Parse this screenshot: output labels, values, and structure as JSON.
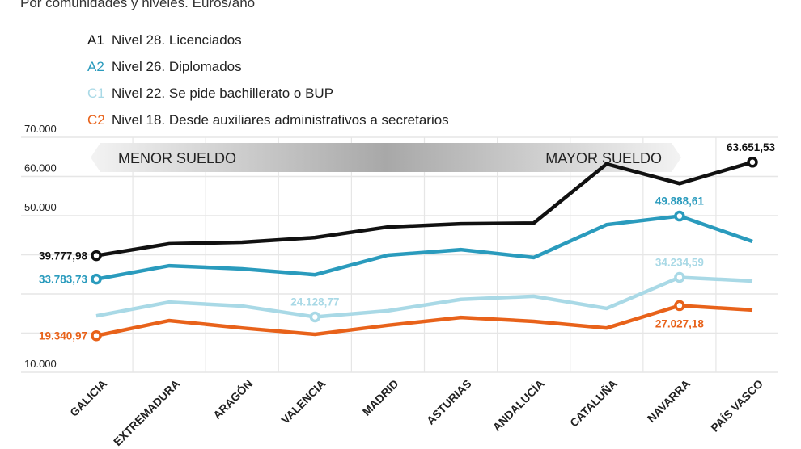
{
  "subtitle": "Por comunidades y niveles. Euros/año",
  "legend": [
    {
      "code": "A1",
      "label": "Nivel 28. Licenciados",
      "color": "#111111"
    },
    {
      "code": "A2",
      "label": "Nivel 26. Diplomados",
      "color": "#2a9bbd"
    },
    {
      "code": "C1",
      "label": "Nivel 22. Se pide bachillerato o BUP",
      "color": "#a9d9e6"
    },
    {
      "code": "C2",
      "label": "Nivel 18. Desde auxiliares administrativos a secretarios",
      "color": "#e8621a"
    }
  ],
  "band": {
    "left_label": "MENOR SUELDO",
    "right_label": "MAYOR SUELDO"
  },
  "chart_data": {
    "type": "line",
    "title": "Por comunidades y niveles. Euros/año",
    "xlabel": "",
    "ylabel": "",
    "ylim": [
      10000,
      70000
    ],
    "yticks": [
      10000,
      20000,
      30000,
      40000,
      50000,
      60000,
      70000
    ],
    "ytick_labels": [
      "10.000",
      "",
      "",
      "",
      "50.000",
      "60.000",
      "70.000"
    ],
    "grid": true,
    "legend_position": "top-left",
    "categories": [
      "GALICIA",
      "EXTREMADURA",
      "ARAGÓN",
      "VALENCIA",
      "MADRID",
      "ASTURIAS",
      "ANDALUCÍA",
      "CATALUÑA",
      "NAVARRA",
      "PAÍS VASCO"
    ],
    "series": [
      {
        "name": "A1",
        "color": "#111111",
        "values": [
          39777.98,
          42800,
          43200,
          44400,
          47100,
          47900,
          48100,
          63200,
          58200,
          63651.53
        ]
      },
      {
        "name": "A2",
        "color": "#2a9bbd",
        "values": [
          33783.73,
          37200,
          36400,
          34900,
          39900,
          41300,
          39300,
          47700,
          49888.61,
          43400
        ]
      },
      {
        "name": "C1",
        "color": "#a9d9e6",
        "values": [
          24400,
          27900,
          26900,
          24128.77,
          25700,
          28600,
          29400,
          26300,
          34234.59,
          33300
        ]
      },
      {
        "name": "C2",
        "color": "#e8621a",
        "values": [
          19340.97,
          23200,
          21300,
          19700,
          22000,
          24000,
          23000,
          21300,
          27027.18,
          25900
        ]
      }
    ],
    "annotations": [
      {
        "series": "A1",
        "category": "GALICIA",
        "text": "39.777,98",
        "position": "left"
      },
      {
        "series": "A1",
        "category": "PAÍS VASCO",
        "text": "63.651,53",
        "position": "above"
      },
      {
        "series": "A2",
        "category": "GALICIA",
        "text": "33.783,73",
        "position": "left"
      },
      {
        "series": "A2",
        "category": "NAVARRA",
        "text": "49.888,61",
        "position": "above"
      },
      {
        "series": "C1",
        "category": "VALENCIA",
        "text": "24.128,77",
        "position": "above"
      },
      {
        "series": "C1",
        "category": "NAVARRA",
        "text": "34.234,59",
        "position": "above"
      },
      {
        "series": "C2",
        "category": "GALICIA",
        "text": "19.340,97",
        "position": "left"
      },
      {
        "series": "C2",
        "category": "NAVARRA",
        "text": "27.027,18",
        "position": "below"
      }
    ]
  }
}
